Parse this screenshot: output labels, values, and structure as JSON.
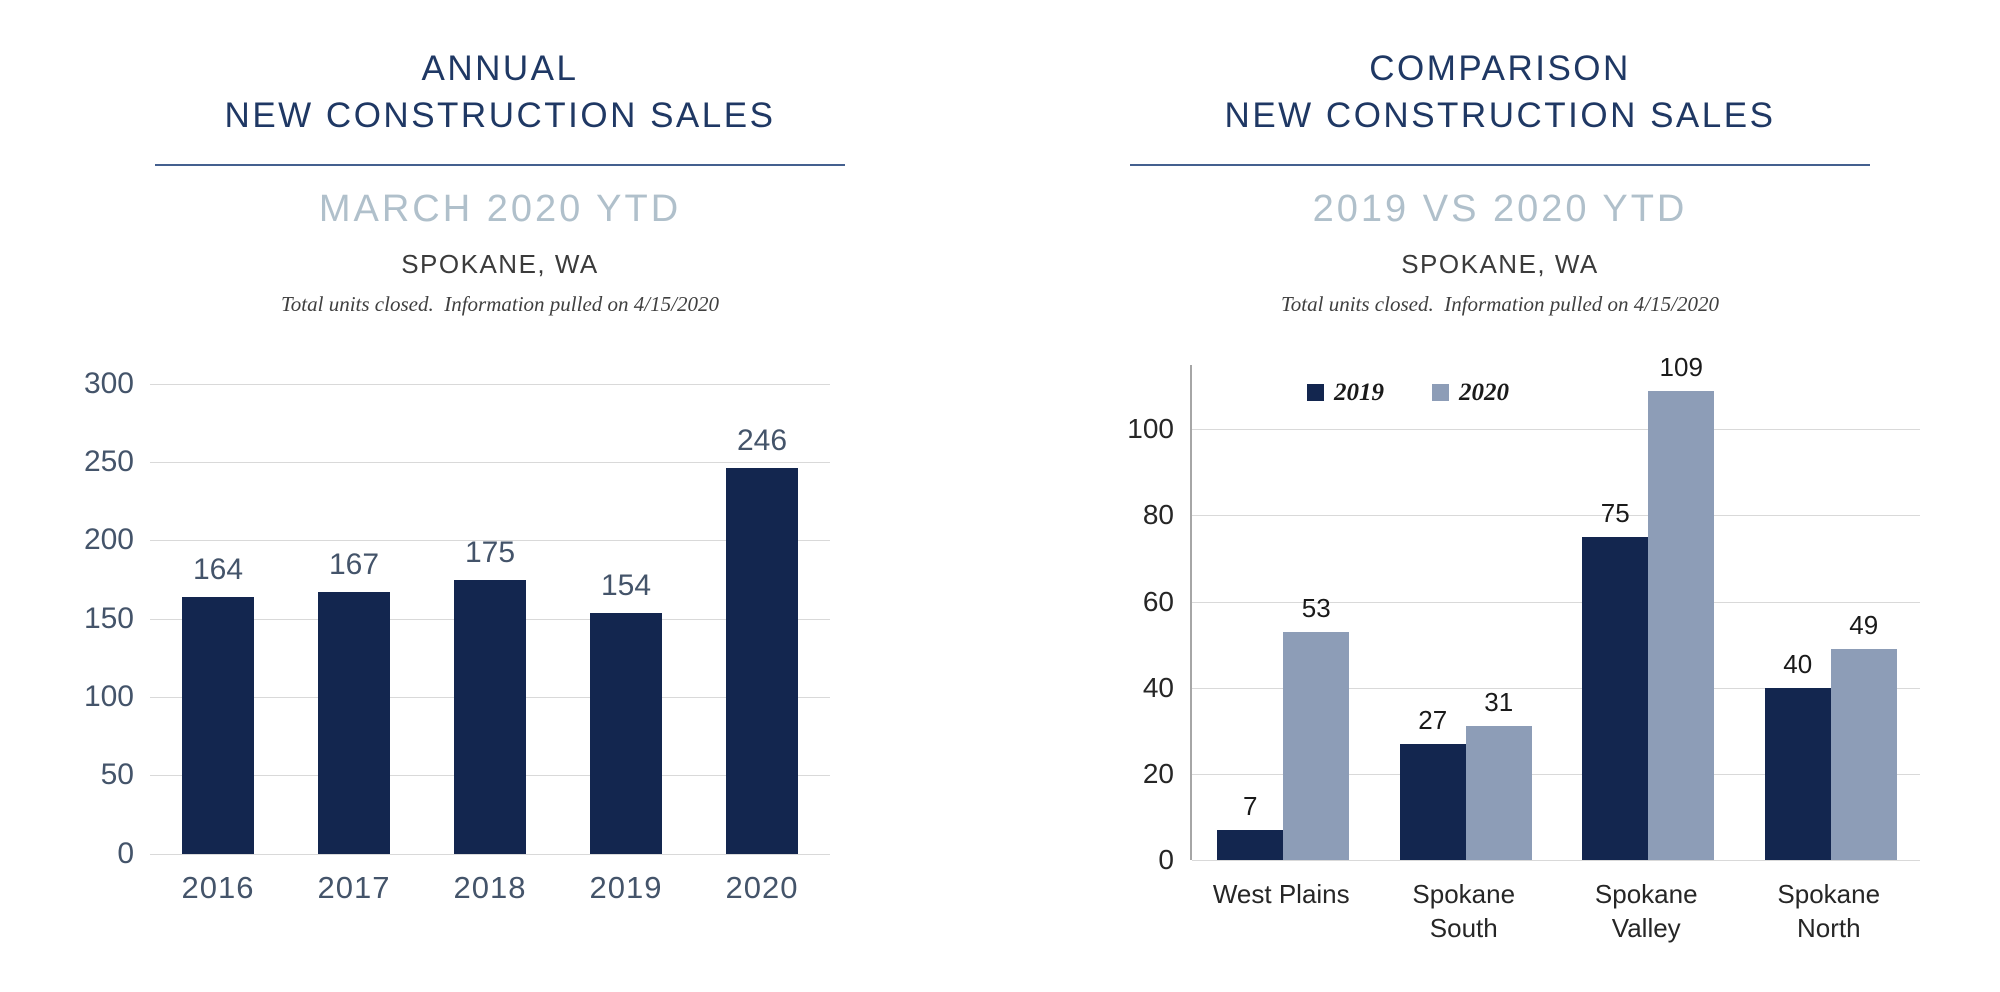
{
  "page": {
    "background": "#ffffff"
  },
  "chart_data": [
    {
      "type": "bar",
      "title": "ANNUAL NEW CONSTRUCTION SALES",
      "title_lines": [
        "ANNUAL",
        "NEW CONSTRUCTION SALES"
      ],
      "subtitle": "MARCH 2020 YTD",
      "location": "SPOKANE, WA",
      "note": "Total units closed.  Information pulled on 4/15/2020",
      "categories": [
        "2016",
        "2017",
        "2018",
        "2019",
        "2020"
      ],
      "values": [
        164,
        167,
        175,
        154,
        246
      ],
      "bar_color": "#13264f",
      "ylim": [
        0,
        300
      ],
      "yticks": [
        0,
        50,
        100,
        150,
        200,
        250,
        300
      ],
      "grid": true,
      "legend": false,
      "xlabel": "",
      "ylabel": ""
    },
    {
      "type": "bar",
      "title": "COMPARISON NEW CONSTRUCTION SALES",
      "title_lines": [
        "COMPARISON",
        "NEW CONSTRUCTION SALES"
      ],
      "subtitle": "2019 VS 2020 YTD",
      "location": "SPOKANE, WA",
      "note": "Total units closed.  Information pulled on 4/15/2020",
      "categories": [
        "West Plains",
        "Spokane\nSouth",
        "Spokane\nValley",
        "Spokane\nNorth"
      ],
      "series": [
        {
          "name": "2019",
          "values": [
            7,
            27,
            75,
            40
          ],
          "color": "#13264f"
        },
        {
          "name": "2020",
          "values": [
            53,
            31,
            109,
            49
          ],
          "color": "#8d9db7"
        }
      ],
      "ylim": [
        0,
        115
      ],
      "yticks": [
        0,
        20,
        40,
        60,
        80,
        100
      ],
      "grid": true,
      "legend": true,
      "legend_position": "top-left-inside",
      "xlabel": "",
      "ylabel": ""
    }
  ],
  "colors": {
    "title_navy": "#1f3864",
    "subtitle_gray_blue": "#b0c0cb",
    "bar_navy": "#13264f",
    "bar_gray_blue": "#8d9db7",
    "gridline": "#d9d9d9",
    "axis_line": "#a6a6a6",
    "axis_text_left": "#44546a",
    "axis_text_right": "#262626"
  }
}
